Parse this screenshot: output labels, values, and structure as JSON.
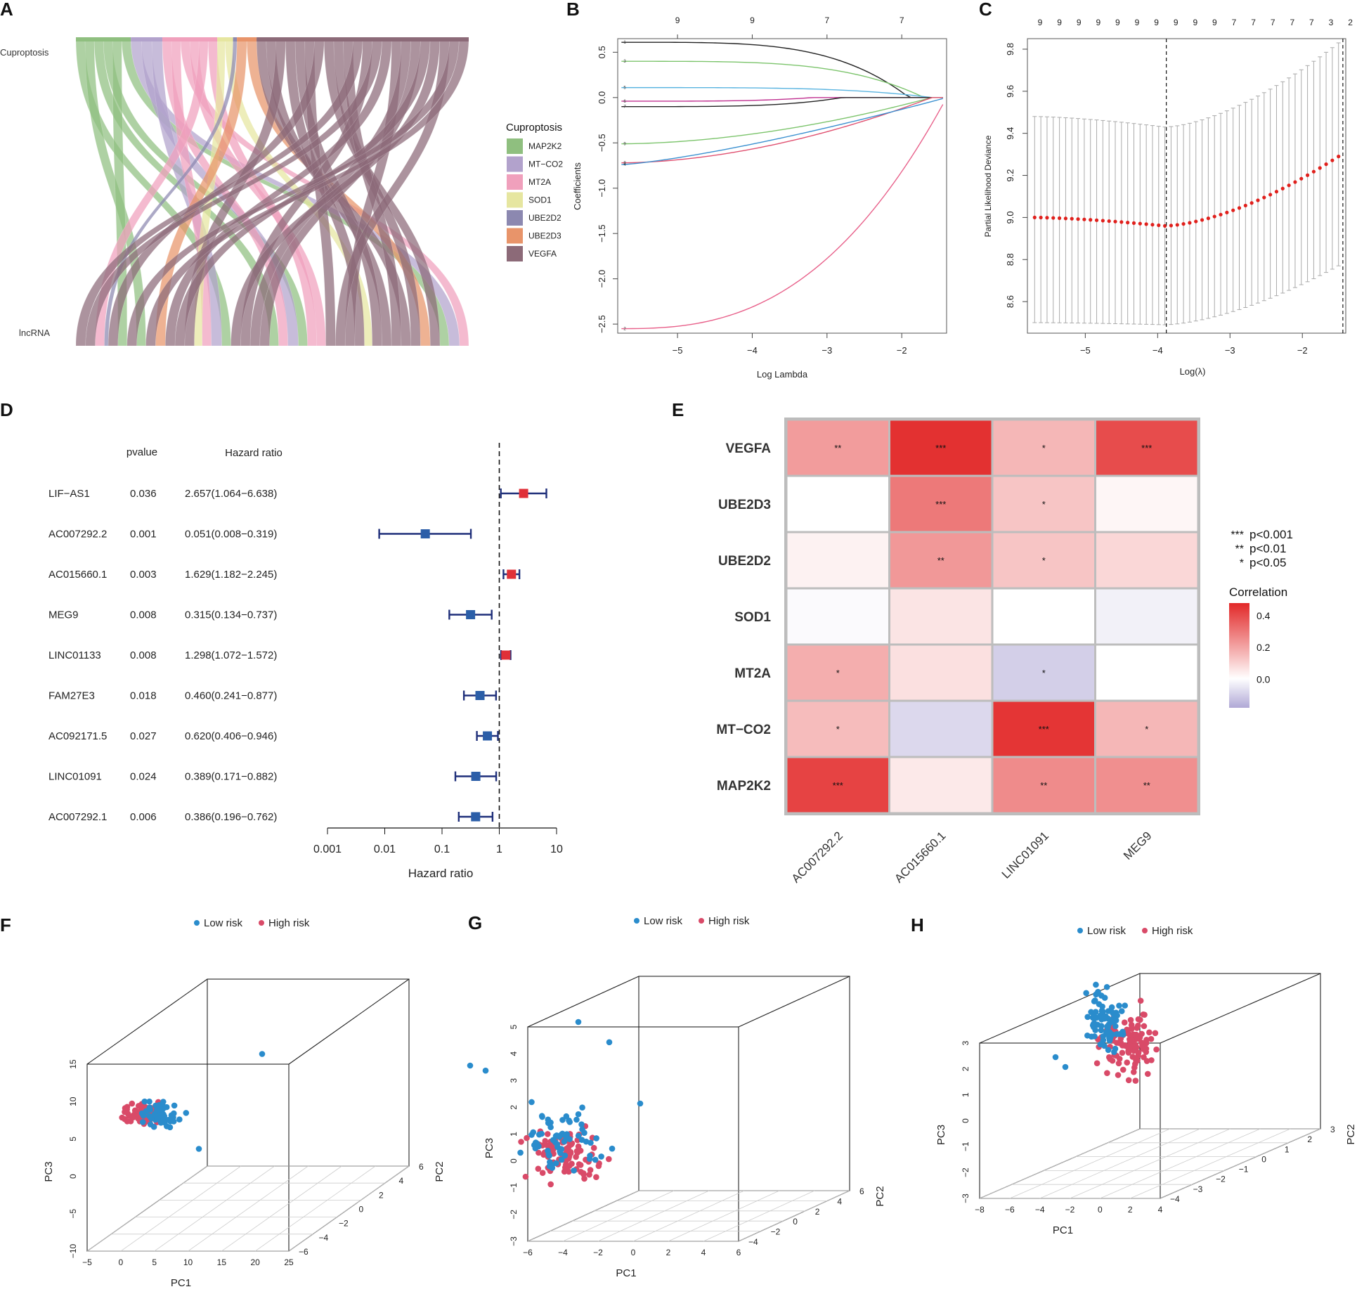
{
  "colors": {
    "MAP2K2": "#8fbf7f",
    "MT-CO2": "#b2a2cc",
    "MT2A": "#f0a0bc",
    "SOD1": "#e6e6a0",
    "UBE2D2": "#8c88b0",
    "UBE2D3": "#e8946a",
    "VEGFA": "#8c6a78",
    "risk_low": "#2a8ccc",
    "risk_high": "#d94a68",
    "hr_low": "#2b5ea8",
    "hr_high": "#e03038",
    "hr_line": "#1f2f7a"
  },
  "chart_data": [
    {
      "panel": "A",
      "type": "sankey",
      "left_label": "Cuproptosis",
      "right_label": "lncRNA",
      "legend_title": "Cuproptosis",
      "legend": [
        "MAP2K2",
        "MT−CO2",
        "MT2A",
        "SOD1",
        "UBE2D2",
        "UBE2D3",
        "VEGFA"
      ],
      "legend_keys": [
        "MAP2K2",
        "MT-CO2",
        "MT2A",
        "SOD1",
        "UBE2D2",
        "UBE2D3",
        "VEGFA"
      ],
      "top_fractions": [
        0.14,
        0.08,
        0.14,
        0.04,
        0.01,
        0.05,
        0.54
      ]
    },
    {
      "panel": "B",
      "type": "line",
      "xlabel": "Log Lambda",
      "ylabel": "Coefficients",
      "xlim": [
        -5.8,
        -1.4
      ],
      "ylim": [
        -2.6,
        0.65
      ],
      "xticks": [
        -5,
        -4,
        -3,
        -2
      ],
      "xtick_labels": [
        "−5",
        "−4",
        "−3",
        "−2"
      ],
      "yticks": [
        -2.5,
        -2.0,
        -1.5,
        -1.0,
        -0.5,
        0.0,
        0.5
      ],
      "ytick_labels": [
        "−2.5",
        "−2.0",
        "−1.5",
        "−1.0",
        "−0.5",
        "0.0",
        "0.5"
      ],
      "top_ticks": [
        -5,
        -4,
        -3,
        -2
      ],
      "top_labels": [
        "9",
        "9",
        "7",
        "7"
      ],
      "line_labels": [
        "1",
        "3",
        "5",
        "6",
        "7",
        "9",
        "8",
        "4",
        "2"
      ],
      "series": [
        {
          "name": "1",
          "color": "#222222",
          "start": 0.61,
          "zero_at": -1.9,
          "shape": "flat"
        },
        {
          "name": "3",
          "color": "#7cc46c",
          "start": 0.4,
          "zero_at": -1.7,
          "shape": "flat"
        },
        {
          "name": "5",
          "color": "#5ab4e0",
          "start": 0.11,
          "zero_at": -1.6,
          "shape": "flat"
        },
        {
          "name": "6",
          "color": "#c03090",
          "start": -0.04,
          "zero_at": -3.2,
          "shape": "flat"
        },
        {
          "name": "7",
          "color": "#222222",
          "start": -0.1,
          "zero_at": -2.8,
          "shape": "flat"
        },
        {
          "name": "9",
          "color": "#7cc46c",
          "start": -0.51,
          "zero_at": -1.6,
          "shape": "rise"
        },
        {
          "name": "8",
          "color": "#e05070",
          "start": -0.72,
          "zero_at": -1.6,
          "shape": "rise"
        },
        {
          "name": "4",
          "color": "#3a90d0",
          "start": -0.74,
          "zero_at": -1.4,
          "shape": "lin"
        },
        {
          "name": "2",
          "color": "#e8608a",
          "start": -2.55,
          "zero_at": -1.4,
          "shape": "steep"
        }
      ]
    },
    {
      "panel": "C",
      "type": "errorbar",
      "xlabel": "Log(λ)",
      "ylabel": "Partial Likelihood Deviance",
      "xlim": [
        -5.8,
        -1.4
      ],
      "ylim": [
        8.45,
        9.85
      ],
      "xticks": [
        -5,
        -4,
        -3,
        -2
      ],
      "xtick_labels": [
        "−5",
        "−4",
        "−3",
        "−2"
      ],
      "yticks": [
        8.6,
        8.8,
        9.0,
        9.2,
        9.4,
        9.6,
        9.8
      ],
      "ytick_labels": [
        "8.6",
        "8.8",
        "9.0",
        "9.2",
        "9.4",
        "9.6",
        "9.8"
      ],
      "top_labels": [
        "9",
        "9",
        "9",
        "9",
        "9",
        "9",
        "9",
        "9",
        "9",
        "9",
        "7",
        "7",
        "7",
        "7",
        "7",
        "3",
        "2"
      ],
      "vlines": [
        -3.88,
        -1.44
      ],
      "n_points": 50,
      "mean_start": 9.0,
      "mean_min": 8.96,
      "mean_min_at": -3.9,
      "mean_end": 9.29,
      "upper_start": 9.48,
      "upper_min": 9.43,
      "upper_end": 9.83,
      "lower_start": 8.5,
      "lower_min": 8.49,
      "lower_end": 8.77
    },
    {
      "panel": "D",
      "type": "forest",
      "col_pvalue": "pvalue",
      "col_hr": "Hazard ratio",
      "xlabel": "Hazard ratio",
      "xticks": [
        0.001,
        0.01,
        0.1,
        1,
        10
      ],
      "xtick_labels": [
        "0.001",
        "0.01",
        "0.1",
        "1",
        "10"
      ],
      "rows": [
        {
          "gene": "LIF−AS1",
          "pvalue": "0.036",
          "hr_text": "2.657(1.064−6.638)",
          "hr": 2.657,
          "lo": 1.064,
          "hi": 6.638
        },
        {
          "gene": "AC007292.2",
          "pvalue": "0.001",
          "hr_text": "0.051(0.008−0.319)",
          "hr": 0.051,
          "lo": 0.008,
          "hi": 0.319
        },
        {
          "gene": "AC015660.1",
          "pvalue": "0.003",
          "hr_text": "1.629(1.182−2.245)",
          "hr": 1.629,
          "lo": 1.182,
          "hi": 2.245
        },
        {
          "gene": "MEG9",
          "pvalue": "0.008",
          "hr_text": "0.315(0.134−0.737)",
          "hr": 0.315,
          "lo": 0.134,
          "hi": 0.737
        },
        {
          "gene": "LINC01133",
          "pvalue": "0.008",
          "hr_text": "1.298(1.072−1.572)",
          "hr": 1.298,
          "lo": 1.072,
          "hi": 1.572
        },
        {
          "gene": "FAM27E3",
          "pvalue": "0.018",
          "hr_text": "0.460(0.241−0.877)",
          "hr": 0.46,
          "lo": 0.241,
          "hi": 0.877
        },
        {
          "gene": "AC092171.5",
          "pvalue": "0.027",
          "hr_text": "0.620(0.406−0.946)",
          "hr": 0.62,
          "lo": 0.406,
          "hi": 0.946
        },
        {
          "gene": "LINC01091",
          "pvalue": "0.024",
          "hr_text": "0.389(0.171−0.882)",
          "hr": 0.389,
          "lo": 0.171,
          "hi": 0.882
        },
        {
          "gene": "AC007292.1",
          "pvalue": "0.006",
          "hr_text": "0.386(0.196−0.762)",
          "hr": 0.386,
          "lo": 0.196,
          "hi": 0.762
        }
      ]
    },
    {
      "panel": "E",
      "type": "heatmap",
      "rows": [
        "VEGFA",
        "UBE2D3",
        "UBE2D2",
        "SOD1",
        "MT2A",
        "MT−CO2",
        "MAP2K2"
      ],
      "cols": [
        "AC007292.2",
        "AC015660.1",
        "LINC01091",
        "MEG9"
      ],
      "values": [
        [
          0.22,
          0.46,
          0.16,
          0.4
        ],
        [
          0.0,
          0.3,
          0.13,
          0.02
        ],
        [
          0.03,
          0.23,
          0.13,
          0.09
        ],
        [
          -0.01,
          0.06,
          0.0,
          -0.03
        ],
        [
          0.18,
          0.07,
          -0.1,
          0.0
        ],
        [
          0.15,
          -0.08,
          0.45,
          0.16
        ],
        [
          0.42,
          0.05,
          0.26,
          0.25
        ]
      ],
      "stars": [
        [
          "**",
          "***",
          "*",
          "***"
        ],
        [
          "",
          "***",
          "*",
          ""
        ],
        [
          "",
          "**",
          "*",
          ""
        ],
        [
          "",
          "",
          "",
          ""
        ],
        [
          "*",
          "",
          "*",
          ""
        ],
        [
          "*",
          "",
          "***",
          "*"
        ],
        [
          "***",
          "",
          "**",
          "**"
        ]
      ],
      "sig_legend": [
        {
          "stars": "***",
          "label": "p<0.001"
        },
        {
          "stars": "**",
          "label": "p<0.01"
        },
        {
          "stars": "*",
          "label": "p<0.05"
        }
      ],
      "colorbar_title": "Correlation",
      "colorbar_ticks": [
        0.4,
        0.2,
        0.0
      ],
      "colorbar_tick_labels": [
        "0.4",
        "0.2",
        "0.0"
      ],
      "colorbar_range": [
        -0.18,
        0.48
      ]
    },
    {
      "panel": "F",
      "type": "scatter3d",
      "legend": [
        "Low risk",
        "High risk"
      ],
      "xlabel": "PC1",
      "ylabel": "PC2",
      "zlabel": "PC3",
      "x_ticks": [
        "−5",
        "0",
        "5",
        "10",
        "15",
        "20",
        "25"
      ],
      "y_ticks": [
        "−6",
        "−4",
        "−2",
        "0",
        "2",
        "4",
        "6"
      ],
      "z_ticks": [
        "−10",
        "−5",
        "0",
        "5",
        "10",
        "15"
      ],
      "low_count": 55,
      "high_count": 85,
      "low_center": [
        6,
        0,
        5.5
      ],
      "high_center": [
        3,
        1,
        5.5
      ],
      "outliers": [
        [
          22,
          4,
          17
        ],
        [
          12,
          -2,
          -1
        ]
      ]
    },
    {
      "panel": "G",
      "type": "scatter3d",
      "legend": [
        "Low risk",
        "High risk"
      ],
      "xlabel": "PC1",
      "ylabel": "PC2",
      "zlabel": "PC3",
      "x_ticks": [
        "−6",
        "−4",
        "−2",
        "0",
        "2",
        "4",
        "6"
      ],
      "y_ticks": [
        "−4",
        "−2",
        "0",
        "2",
        "4",
        "6"
      ],
      "z_ticks": [
        "−3",
        "−2",
        "−1",
        "0",
        "1",
        "2",
        "3",
        "4",
        "5"
      ],
      "low_count": 70,
      "high_count": 85,
      "low_center": [
        2,
        0,
        1
      ],
      "high_center": [
        2,
        0,
        0.5
      ],
      "outliers": [
        [
          3,
          2,
          5.5
        ],
        [
          5,
          2,
          4.7
        ],
        [
          -4,
          0,
          4
        ],
        [
          -3,
          0,
          3.8
        ],
        [
          7,
          0,
          2.5
        ]
      ]
    },
    {
      "panel": "H",
      "type": "scatter3d",
      "legend": [
        "Low risk",
        "High risk"
      ],
      "xlabel": "PC1",
      "ylabel": "PC2",
      "zlabel": "PC3",
      "x_ticks": [
        "−8",
        "−6",
        "−4",
        "−2",
        "0",
        "2",
        "4"
      ],
      "y_ticks": [
        "−4",
        "−3",
        "−2",
        "−1",
        "0",
        "1",
        "2",
        "3"
      ],
      "z_ticks": [
        "−3",
        "−2",
        "−1",
        "0",
        "1",
        "2",
        "3"
      ],
      "low_count": 80,
      "high_count": 100,
      "low_center": [
        -1,
        1.5,
        2
      ],
      "high_center": [
        1.5,
        0,
        1.2
      ],
      "outliers": [
        [
          -6,
          0,
          0.5
        ],
        [
          -5,
          0,
          0
        ]
      ]
    }
  ]
}
